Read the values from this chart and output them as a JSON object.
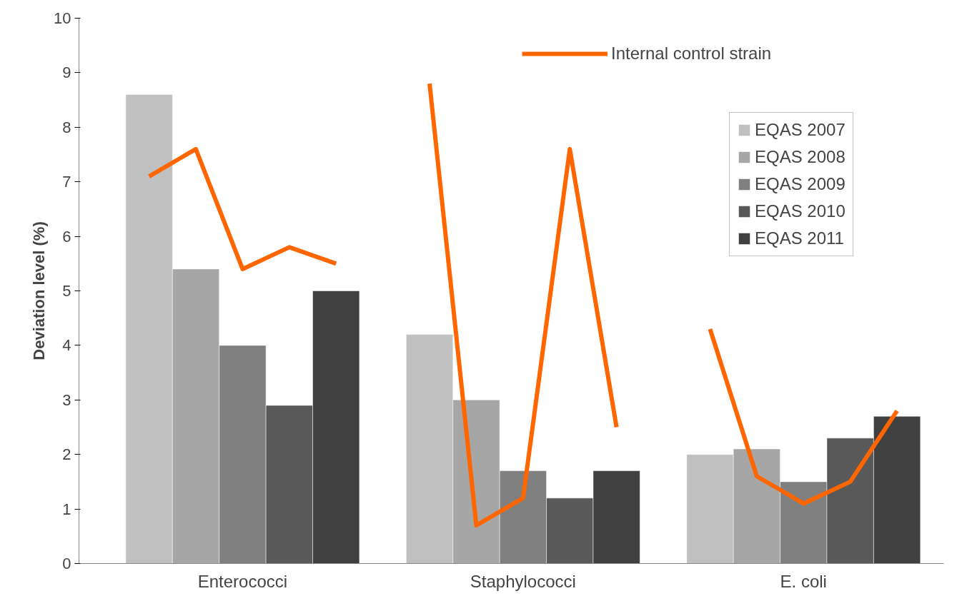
{
  "chart_data": {
    "type": "bar",
    "ylabel": "Deviation level (%)",
    "categories": [
      null,
      null,
      "Enterococci",
      null,
      null,
      null,
      null,
      null,
      "Staphylococci",
      null,
      null,
      null,
      null,
      null,
      "E. coli",
      null,
      null
    ],
    "series": [
      {
        "name": "EQAS 2007",
        "color": "#c0c0c0",
        "values": [
          8.6,
          null,
          null,
          null,
          null,
          null,
          4.2,
          null,
          null,
          null,
          null,
          null,
          2.0,
          null,
          null,
          null,
          null
        ]
      },
      {
        "name": "EQAS 2008",
        "color": "#a6a6a6",
        "values": [
          null,
          5.4,
          null,
          null,
          null,
          null,
          null,
          3.0,
          null,
          null,
          null,
          null,
          null,
          2.1,
          null,
          null,
          null
        ]
      },
      {
        "name": "EQAS 2009",
        "color": "#808080",
        "values": [
          null,
          null,
          4.0,
          null,
          null,
          null,
          null,
          null,
          1.7,
          null,
          null,
          null,
          null,
          null,
          1.5,
          null,
          null
        ]
      },
      {
        "name": "EQAS 2010",
        "color": "#595959",
        "values": [
          null,
          null,
          null,
          2.9,
          null,
          null,
          null,
          null,
          null,
          1.2,
          null,
          null,
          null,
          null,
          null,
          2.3,
          null
        ]
      },
      {
        "name": "EQAS 2011",
        "color": "#404040",
        "values": [
          null,
          null,
          null,
          null,
          5.0,
          null,
          null,
          null,
          null,
          null,
          1.7,
          null,
          null,
          null,
          null,
          null,
          2.7
        ]
      },
      {
        "name": "Internal control strain",
        "type": "line",
        "color": "#ff6600",
        "line_style": "solid",
        "values": [
          7.1,
          7.6,
          5.4,
          5.8,
          5.5,
          null,
          8.8,
          0.7,
          1.2,
          7.6,
          2.5,
          null,
          4.3,
          1.6,
          1.1,
          1.5,
          2.8
        ]
      }
    ],
    "ylim": [
      0,
      10
    ],
    "yticks": [
      0,
      1,
      2,
      3,
      4,
      5,
      6,
      7,
      8,
      9,
      10
    ],
    "grid": false,
    "legend": "top right"
  }
}
